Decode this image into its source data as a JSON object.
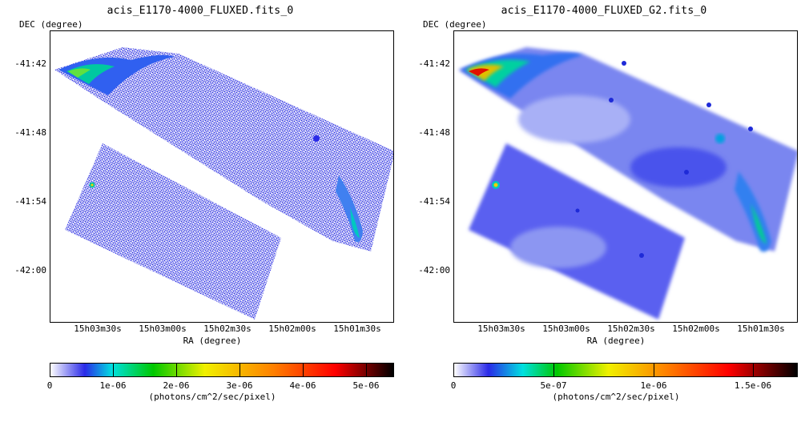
{
  "panels": [
    {
      "title": "acis_E1170-4000_FLUXED.fits_0",
      "y_axis_label": "DEC (degree)",
      "x_axis_label": "RA (degree)",
      "y_ticks": [
        "-41:42",
        "-41:48",
        "-41:54",
        "-42:00"
      ],
      "x_ticks": [
        "15h03m30s",
        "15h03m00s",
        "15h02m30s",
        "15h02m00s",
        "15h01m30s"
      ],
      "colorbar_labels": [
        "0",
        "1e-06",
        "2e-06",
        "3e-06",
        "4e-06",
        "5e-06"
      ],
      "colorbar_unit": "(photons/cm^2/sec/pixel)",
      "image_style": "raw"
    },
    {
      "title": "acis_E1170-4000_FLUXED_G2.fits_0",
      "y_axis_label": "DEC (degree)",
      "x_axis_label": "RA (degree)",
      "y_ticks": [
        "-41:42",
        "-41:48",
        "-41:54",
        "-42:00"
      ],
      "x_ticks": [
        "15h03m30s",
        "15h03m00s",
        "15h02m30s",
        "15h02m00s",
        "15h01m30s"
      ],
      "colorbar_labels": [
        "0",
        "5e-07",
        "1e-06",
        "1.5e-06"
      ],
      "colorbar_unit": "(photons/cm^2/sec/pixel)",
      "image_style": "smoothed"
    }
  ],
  "colormap": [
    "#ffffff",
    "#2a2ae8",
    "#00e0e0",
    "#00c800",
    "#f0f000",
    "#ff8000",
    "#ff0000",
    "#000000"
  ]
}
